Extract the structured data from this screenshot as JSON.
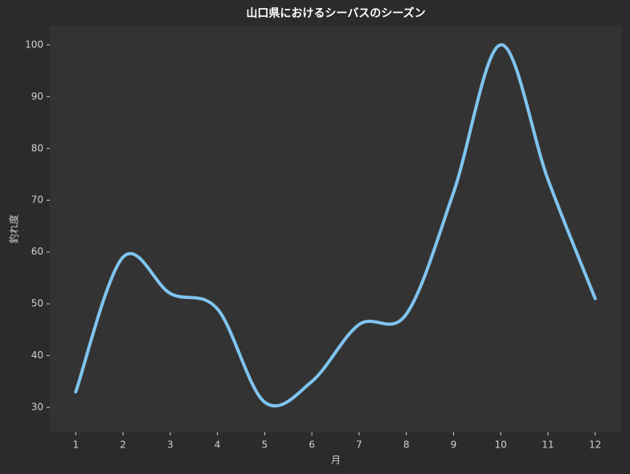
{
  "chart_data": {
    "type": "line",
    "title": "山口県におけるシーバスのシーズン",
    "x_label": "月",
    "y_label": "釣れ度",
    "x": [
      1,
      2,
      3,
      4,
      5,
      6,
      7,
      8,
      9,
      10,
      11,
      12
    ],
    "series": [
      {
        "name": "釣れ度",
        "color": "#7fc4f0",
        "values": [
          33,
          59,
          52,
          49,
          31,
          35,
          46,
          48,
          71.5,
          100,
          74,
          51
        ]
      }
    ],
    "xlim": [
      0.45,
      12.55
    ],
    "ylim": [
      25.2,
      103.7
    ],
    "xticks": [
      1,
      2,
      3,
      4,
      5,
      6,
      7,
      8,
      9,
      10,
      11,
      12
    ],
    "yticks": [
      30,
      40,
      50,
      60,
      70,
      80,
      90,
      100
    ],
    "smooth": true,
    "grid": false,
    "legend": false
  }
}
